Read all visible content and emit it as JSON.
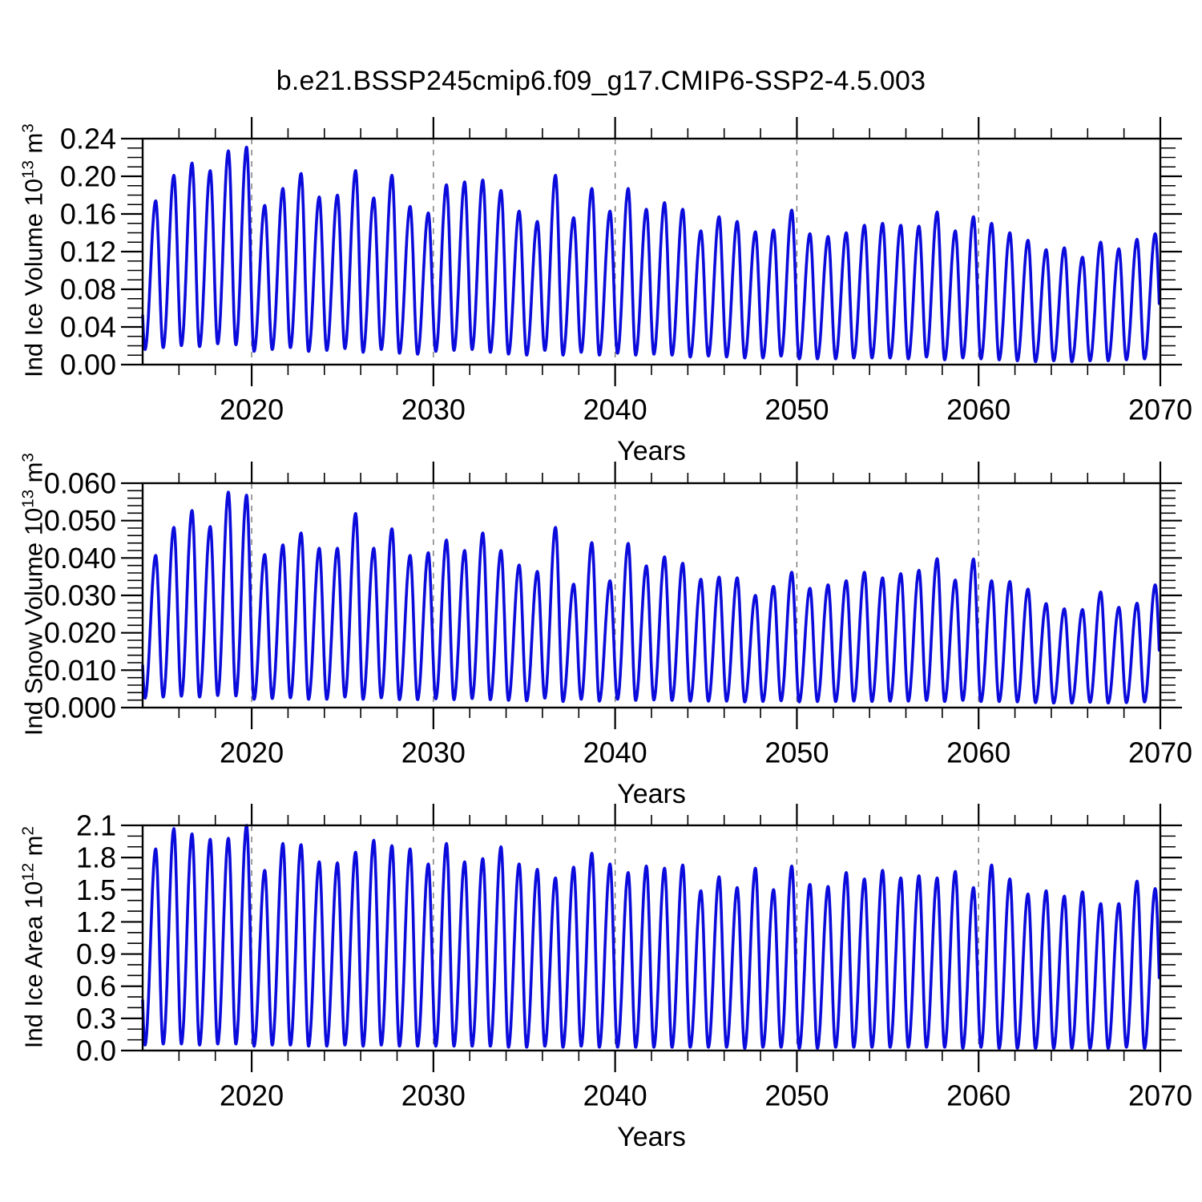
{
  "figure": {
    "title": "b.e21.BSSP245cmip6.f09_g17.CMIP6-SSP2-4.5.003"
  },
  "colors": {
    "line": "#0b0bdc",
    "frame": "#000000",
    "grid": "#6b6b6b",
    "text": "#000000",
    "background": "#ffffff"
  },
  "x_axis": {
    "label": "Years",
    "start": 2014,
    "end": 2070,
    "data_end": 2069.95,
    "major_tick_years": [
      2020,
      2030,
      2040,
      2050,
      2060,
      2070
    ],
    "major_tick_labels": [
      "2020",
      "2030",
      "2040",
      "2050",
      "2060",
      "2070"
    ],
    "minor_tick_step_years": 2,
    "gridline_years": [
      2020,
      2030,
      2040,
      2050,
      2060
    ],
    "gridline_style": "dashed"
  },
  "season": {
    "min_year_fraction": 0.13,
    "max_year_fraction": 0.72
  },
  "chart_data": [
    {
      "type": "line",
      "name": "ind-ice-volume",
      "ylabel_text": "Ind Ice Volume 10^13 m^3",
      "ylabel": {
        "prefix": "Ind Ice Volume 10",
        "exp": "13",
        "unit": " m",
        "unit_exp": "3"
      },
      "xlabel": "Years",
      "ylim": [
        0,
        0.24
      ],
      "ytick_step": 0.04,
      "ytick_labels": [
        "0.00",
        "0.04",
        "0.08",
        "0.12",
        "0.16",
        "0.20",
        "0.24"
      ],
      "yminor_step": 0.01,
      "legend": "none",
      "series_start_year": 2014,
      "annual_max": [
        0.174,
        0.201,
        0.214,
        0.206,
        0.227,
        0.231,
        0.169,
        0.187,
        0.203,
        0.178,
        0.18,
        0.206,
        0.177,
        0.201,
        0.168,
        0.161,
        0.191,
        0.194,
        0.196,
        0.185,
        0.163,
        0.152,
        0.201,
        0.156,
        0.187,
        0.163,
        0.187,
        0.165,
        0.172,
        0.165,
        0.142,
        0.157,
        0.152,
        0.141,
        0.143,
        0.164,
        0.139,
        0.136,
        0.14,
        0.148,
        0.15,
        0.148,
        0.147,
        0.162,
        0.142,
        0.157,
        0.15,
        0.14,
        0.132,
        0.122,
        0.124,
        0.114,
        0.13,
        0.123,
        0.133,
        0.139
      ],
      "annual_min": [
        0.016,
        0.018,
        0.02,
        0.019,
        0.022,
        0.021,
        0.014,
        0.016,
        0.018,
        0.014,
        0.015,
        0.017,
        0.013,
        0.016,
        0.012,
        0.011,
        0.014,
        0.015,
        0.016,
        0.013,
        0.011,
        0.01,
        0.015,
        0.01,
        0.013,
        0.01,
        0.012,
        0.01,
        0.011,
        0.01,
        0.008,
        0.009,
        0.008,
        0.007,
        0.007,
        0.009,
        0.006,
        0.006,
        0.006,
        0.007,
        0.007,
        0.007,
        0.006,
        0.008,
        0.005,
        0.007,
        0.006,
        0.005,
        0.004,
        0.003,
        0.004,
        0.003,
        0.004,
        0.004,
        0.005,
        0.006
      ]
    },
    {
      "type": "line",
      "name": "ind-snow-volume",
      "ylabel_text": "Ind Snow Volume 10^13 m^3",
      "ylabel": {
        "prefix": "Ind Snow Volume 10",
        "exp": "13",
        "unit": " m",
        "unit_exp": "3"
      },
      "xlabel": "Years",
      "ylim": [
        0,
        0.06
      ],
      "ytick_step": 0.01,
      "ytick_labels": [
        "0.000",
        "0.010",
        "0.020",
        "0.030",
        "0.040",
        "0.050",
        "0.060"
      ],
      "yminor_step": 0.002,
      "legend": "none",
      "series_start_year": 2014,
      "annual_max": [
        0.0407,
        0.0482,
        0.0527,
        0.0484,
        0.0576,
        0.0568,
        0.0409,
        0.0435,
        0.0467,
        0.0426,
        0.0426,
        0.0519,
        0.0426,
        0.0478,
        0.0407,
        0.0414,
        0.0448,
        0.042,
        0.0467,
        0.042,
        0.0381,
        0.0364,
        0.0482,
        0.033,
        0.0441,
        0.0339,
        0.0439,
        0.0379,
        0.0403,
        0.0386,
        0.0343,
        0.0349,
        0.0347,
        0.03,
        0.0324,
        0.0362,
        0.0319,
        0.0328,
        0.0339,
        0.0362,
        0.0347,
        0.0358,
        0.0367,
        0.0398,
        0.0341,
        0.0397,
        0.0339,
        0.0337,
        0.0317,
        0.0278,
        0.0264,
        0.0262,
        0.0309,
        0.0268,
        0.0279,
        0.0328
      ],
      "annual_min": [
        0.0025,
        0.0028,
        0.003,
        0.0028,
        0.0032,
        0.0031,
        0.0022,
        0.0024,
        0.0026,
        0.0022,
        0.0022,
        0.0028,
        0.0022,
        0.0026,
        0.0021,
        0.0021,
        0.0023,
        0.0021,
        0.0024,
        0.0021,
        0.0019,
        0.0018,
        0.0025,
        0.0016,
        0.0022,
        0.0017,
        0.0022,
        0.0019,
        0.002,
        0.0019,
        0.0017,
        0.0017,
        0.0017,
        0.0015,
        0.0016,
        0.0018,
        0.0015,
        0.0016,
        0.0016,
        0.0017,
        0.0016,
        0.0017,
        0.0017,
        0.0019,
        0.0016,
        0.0019,
        0.0016,
        0.0016,
        0.0015,
        0.0013,
        0.0012,
        0.0012,
        0.0014,
        0.0012,
        0.0013,
        0.0015
      ]
    },
    {
      "type": "line",
      "name": "ind-ice-area",
      "ylabel_text": "Ind Ice Area 10^12 m^2",
      "ylabel": {
        "prefix": "Ind Ice Area 10",
        "exp": "12",
        "unit": " m",
        "unit_exp": "2"
      },
      "xlabel": "Years",
      "ylim": [
        0,
        2.1
      ],
      "ytick_step": 0.3,
      "ytick_labels": [
        "0.0",
        "0.3",
        "0.6",
        "0.9",
        "1.2",
        "1.5",
        "1.8",
        "2.1"
      ],
      "yminor_step": 0.1,
      "legend": "none",
      "series_start_year": 2014,
      "annual_max": [
        1.88,
        2.07,
        2.02,
        1.97,
        1.98,
        2.1,
        1.68,
        1.93,
        1.92,
        1.76,
        1.75,
        1.85,
        1.96,
        1.91,
        1.88,
        1.74,
        1.93,
        1.76,
        1.79,
        1.9,
        1.74,
        1.69,
        1.61,
        1.71,
        1.84,
        1.74,
        1.66,
        1.72,
        1.7,
        1.73,
        1.49,
        1.62,
        1.52,
        1.7,
        1.5,
        1.72,
        1.55,
        1.53,
        1.66,
        1.6,
        1.68,
        1.61,
        1.63,
        1.61,
        1.67,
        1.52,
        1.73,
        1.6,
        1.46,
        1.49,
        1.44,
        1.48,
        1.37,
        1.37,
        1.58,
        1.51
      ],
      "annual_min": [
        0.05,
        0.06,
        0.06,
        0.05,
        0.06,
        0.06,
        0.04,
        0.05,
        0.05,
        0.04,
        0.04,
        0.05,
        0.04,
        0.05,
        0.04,
        0.04,
        0.04,
        0.04,
        0.04,
        0.04,
        0.03,
        0.03,
        0.04,
        0.03,
        0.04,
        0.03,
        0.03,
        0.03,
        0.03,
        0.03,
        0.03,
        0.03,
        0.03,
        0.02,
        0.03,
        0.03,
        0.02,
        0.02,
        0.03,
        0.03,
        0.03,
        0.03,
        0.03,
        0.03,
        0.03,
        0.02,
        0.03,
        0.02,
        0.02,
        0.02,
        0.02,
        0.02,
        0.02,
        0.02,
        0.03,
        0.02
      ]
    }
  ]
}
